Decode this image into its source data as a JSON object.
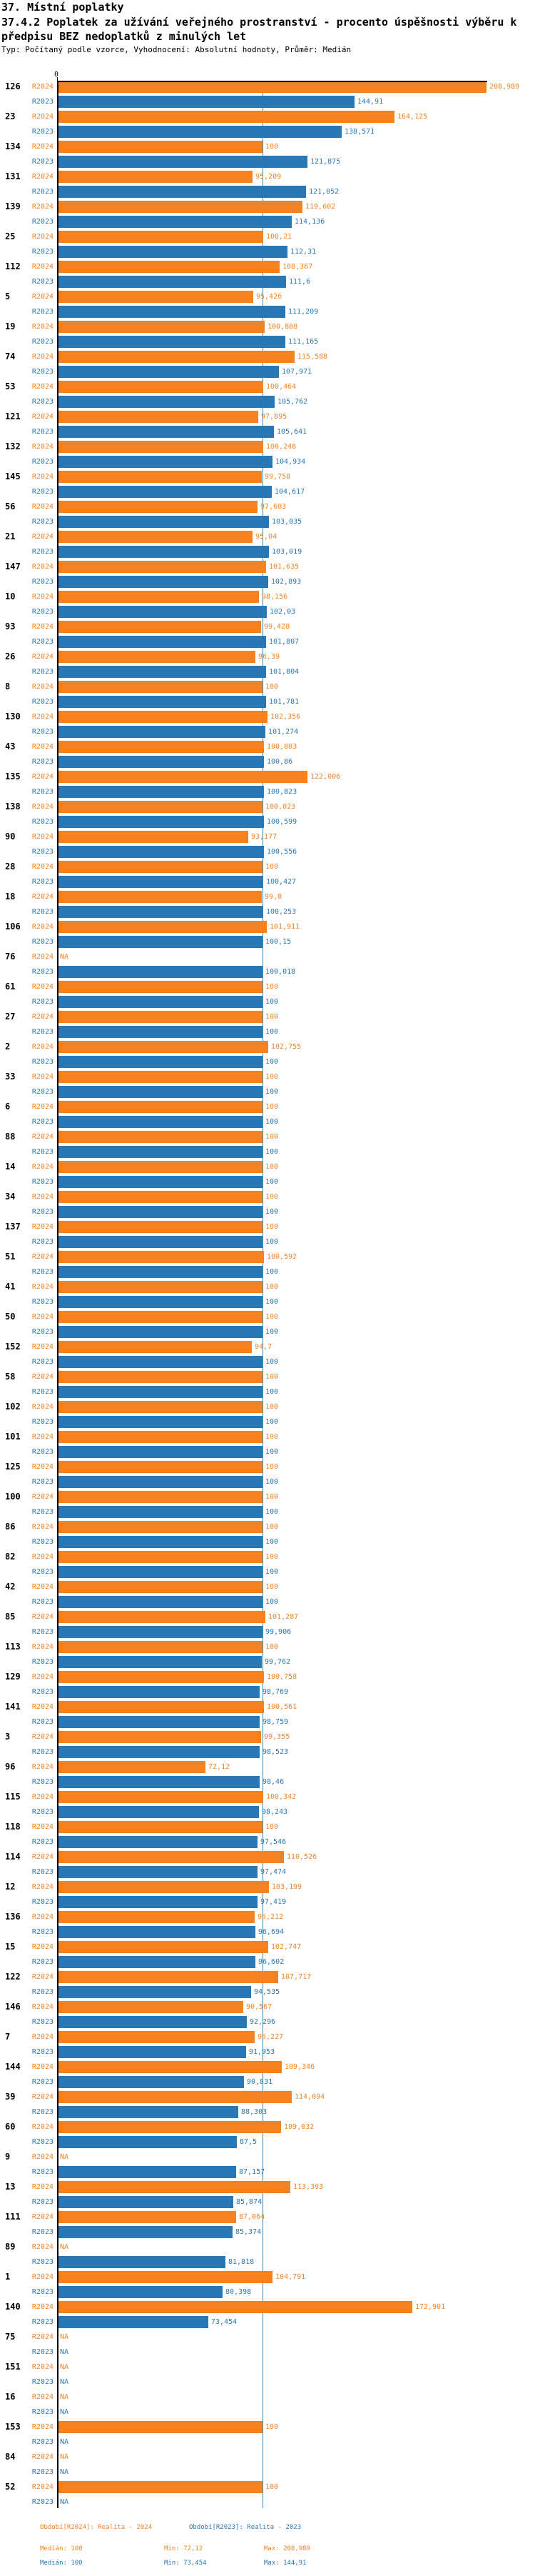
{
  "header": {
    "title": "37. Místní poplatky",
    "subtitle": "37.4.2 Poplatek za užívání veřejného prostranství - procento úspěšnosti výběru k předpisu BEZ nedoplatků z minulých let",
    "meta": "Typ: Počítaný podle vzorce, Vyhodnocení: Absolutní hodnoty, Průměr: Medián"
  },
  "axis": {
    "zero_tick": "0",
    "median_value": 100
  },
  "colors": {
    "r2024": "#f6821f",
    "r2023": "#2878b5",
    "median_line": "#3c92b8",
    "axis": "#000000"
  },
  "legend": {
    "r2024_label": "Období[R2024]: Realita - 2024",
    "r2023_label": "Období[R2023]: Realita - 2023",
    "r2024_median": "Medián: 100",
    "r2024_min": "Min: 72,12",
    "r2024_max": "Max: 208,989",
    "r2023_median": "Medián: 100",
    "r2023_min": "Min: 73,454",
    "r2023_max": "Max: 144,91"
  },
  "chart_data": {
    "type": "bar",
    "orientation": "horizontal",
    "series": [
      "R2024",
      "R2023"
    ],
    "xlim": [
      0,
      209.4
    ],
    "median_line_at": 100,
    "na_text": "NA",
    "groups": [
      {
        "label": "126",
        "r2024": "208,989",
        "r2023": "144,91"
      },
      {
        "label": "23",
        "r2024": "164,125",
        "r2023": "138,571"
      },
      {
        "label": "134",
        "r2024": "100",
        "r2023": "121,875"
      },
      {
        "label": "131",
        "r2024": "95,209",
        "r2023": "121,052"
      },
      {
        "label": "139",
        "r2024": "119,602",
        "r2023": "114,136"
      },
      {
        "label": "25",
        "r2024": "100,21",
        "r2023": "112,31"
      },
      {
        "label": "112",
        "r2024": "108,367",
        "r2023": "111,6"
      },
      {
        "label": "5",
        "r2024": "95,426",
        "r2023": "111,209"
      },
      {
        "label": "19",
        "r2024": "100,888",
        "r2023": "111,165"
      },
      {
        "label": "74",
        "r2024": "115,588",
        "r2023": "107,971"
      },
      {
        "label": "53",
        "r2024": "100,464",
        "r2023": "105,762"
      },
      {
        "label": "121",
        "r2024": "97,895",
        "r2023": "105,641"
      },
      {
        "label": "132",
        "r2024": "100,248",
        "r2023": "104,934"
      },
      {
        "label": "145",
        "r2024": "99,758",
        "r2023": "104,617"
      },
      {
        "label": "56",
        "r2024": "97,603",
        "r2023": "103,035"
      },
      {
        "label": "21",
        "r2024": "95,04",
        "r2023": "103,019"
      },
      {
        "label": "147",
        "r2024": "101,635",
        "r2023": "102,893"
      },
      {
        "label": "10",
        "r2024": "98,156",
        "r2023": "102,03"
      },
      {
        "label": "93",
        "r2024": "99,428",
        "r2023": "101,807"
      },
      {
        "label": "26",
        "r2024": "96,39",
        "r2023": "101,804"
      },
      {
        "label": "8",
        "r2024": "100",
        "r2023": "101,781"
      },
      {
        "label": "130",
        "r2024": "102,356",
        "r2023": "101,274"
      },
      {
        "label": "43",
        "r2024": "100,803",
        "r2023": "100,86"
      },
      {
        "label": "135",
        "r2024": "122,006",
        "r2023": "100,823"
      },
      {
        "label": "138",
        "r2024": "100,023",
        "r2023": "100,599"
      },
      {
        "label": "90",
        "r2024": "93,177",
        "r2023": "100,556"
      },
      {
        "label": "28",
        "r2024": "100",
        "r2023": "100,427"
      },
      {
        "label": "18",
        "r2024": "99,8",
        "r2023": "100,253"
      },
      {
        "label": "106",
        "r2024": "101,911",
        "r2023": "100,15"
      },
      {
        "label": "76",
        "r2024": "NA",
        "r2023": "100,018"
      },
      {
        "label": "61",
        "r2024": "100",
        "r2023": "100"
      },
      {
        "label": "27",
        "r2024": "100",
        "r2023": "100"
      },
      {
        "label": "2",
        "r2024": "102,755",
        "r2023": "100"
      },
      {
        "label": "33",
        "r2024": "100",
        "r2023": "100"
      },
      {
        "label": "6",
        "r2024": "100",
        "r2023": "100"
      },
      {
        "label": "88",
        "r2024": "100",
        "r2023": "100"
      },
      {
        "label": "14",
        "r2024": "100",
        "r2023": "100"
      },
      {
        "label": "34",
        "r2024": "100",
        "r2023": "100"
      },
      {
        "label": "137",
        "r2024": "100",
        "r2023": "100"
      },
      {
        "label": "51",
        "r2024": "100,592",
        "r2023": "100"
      },
      {
        "label": "41",
        "r2024": "100",
        "r2023": "100"
      },
      {
        "label": "50",
        "r2024": "100",
        "r2023": "100"
      },
      {
        "label": "152",
        "r2024": "94,7",
        "r2023": "100"
      },
      {
        "label": "58",
        "r2024": "100",
        "r2023": "100"
      },
      {
        "label": "102",
        "r2024": "100",
        "r2023": "100"
      },
      {
        "label": "101",
        "r2024": "100",
        "r2023": "100"
      },
      {
        "label": "125",
        "r2024": "100",
        "r2023": "100"
      },
      {
        "label": "100",
        "r2024": "100",
        "r2023": "100"
      },
      {
        "label": "86",
        "r2024": "100",
        "r2023": "100"
      },
      {
        "label": "82",
        "r2024": "100",
        "r2023": "100"
      },
      {
        "label": "42",
        "r2024": "100",
        "r2023": "100"
      },
      {
        "label": "85",
        "r2024": "101,287",
        "r2023": "99,906"
      },
      {
        "label": "113",
        "r2024": "100",
        "r2023": "99,762"
      },
      {
        "label": "129",
        "r2024": "100,758",
        "r2023": "98,769"
      },
      {
        "label": "141",
        "r2024": "100,561",
        "r2023": "98,759"
      },
      {
        "label": "3",
        "r2024": "99,355",
        "r2023": "98,523"
      },
      {
        "label": "96",
        "r2024": "72,12",
        "r2023": "98,46"
      },
      {
        "label": "115",
        "r2024": "100,342",
        "r2023": "98,243"
      },
      {
        "label": "118",
        "r2024": "100",
        "r2023": "97,546"
      },
      {
        "label": "114",
        "r2024": "110,526",
        "r2023": "97,474"
      },
      {
        "label": "12",
        "r2024": "103,199",
        "r2023": "97,419"
      },
      {
        "label": "136",
        "r2024": "96,212",
        "r2023": "96,694"
      },
      {
        "label": "15",
        "r2024": "102,747",
        "r2023": "96,602"
      },
      {
        "label": "122",
        "r2024": "107,717",
        "r2023": "94,535"
      },
      {
        "label": "146",
        "r2024": "90,567",
        "r2023": "92,296"
      },
      {
        "label": "7",
        "r2024": "96,227",
        "r2023": "91,953"
      },
      {
        "label": "144",
        "r2024": "109,346",
        "r2023": "90,831"
      },
      {
        "label": "39",
        "r2024": "114,094",
        "r2023": "88,303"
      },
      {
        "label": "60",
        "r2024": "109,032",
        "r2023": "87,5"
      },
      {
        "label": "9",
        "r2024": "NA",
        "r2023": "87,157"
      },
      {
        "label": "13",
        "r2024": "113,393",
        "r2023": "85,874"
      },
      {
        "label": "111",
        "r2024": "87,064",
        "r2023": "85,374"
      },
      {
        "label": "89",
        "r2024": "NA",
        "r2023": "81,818"
      },
      {
        "label": "1",
        "r2024": "104,791",
        "r2023": "80,398"
      },
      {
        "label": "140",
        "r2024": "172,901",
        "r2023": "73,454"
      },
      {
        "label": "75",
        "r2024": "NA",
        "r2023": "NA"
      },
      {
        "label": "151",
        "r2024": "NA",
        "r2023": "NA"
      },
      {
        "label": "16",
        "r2024": "NA",
        "r2023": "NA"
      },
      {
        "label": "153",
        "r2024": "100",
        "r2023": "NA"
      },
      {
        "label": "84",
        "r2024": "NA",
        "r2023": "NA"
      },
      {
        "label": "52",
        "r2024": "100",
        "r2023": "NA"
      }
    ]
  }
}
